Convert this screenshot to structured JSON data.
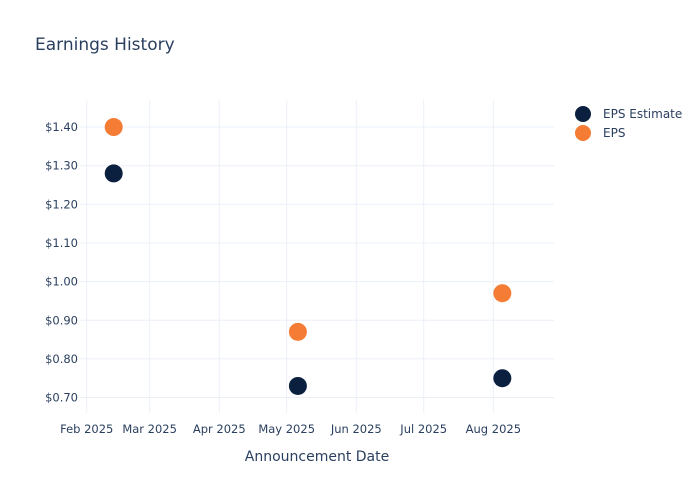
{
  "chart_data": {
    "type": "scatter",
    "title": "Earnings History",
    "xlabel": "Announcement Date",
    "ylabel": "",
    "x_ticks": [
      "Feb 2025",
      "Mar 2025",
      "Apr 2025",
      "May 2025",
      "Jun 2025",
      "Jul 2025",
      "Aug 2025"
    ],
    "y_ticks": [
      "$0.70",
      "$0.80",
      "$0.90",
      "$1.00",
      "$1.10",
      "$1.20",
      "$1.30",
      "$1.40"
    ],
    "ylim": [
      0.66,
      1.47
    ],
    "xlim": [
      "2025-01-29",
      "2025-08-28"
    ],
    "grid": true,
    "legend_position": "top-right",
    "series": [
      {
        "name": "EPS Estimate",
        "color": "#0b1f3f",
        "points": [
          {
            "x": "2025-02-13",
            "y": 1.28
          },
          {
            "x": "2025-05-06",
            "y": 0.73
          },
          {
            "x": "2025-08-05",
            "y": 0.75
          }
        ]
      },
      {
        "name": "EPS",
        "color": "#f47c35",
        "points": [
          {
            "x": "2025-02-13",
            "y": 1.4
          },
          {
            "x": "2025-05-06",
            "y": 0.87
          },
          {
            "x": "2025-08-05",
            "y": 0.97
          }
        ]
      }
    ]
  }
}
